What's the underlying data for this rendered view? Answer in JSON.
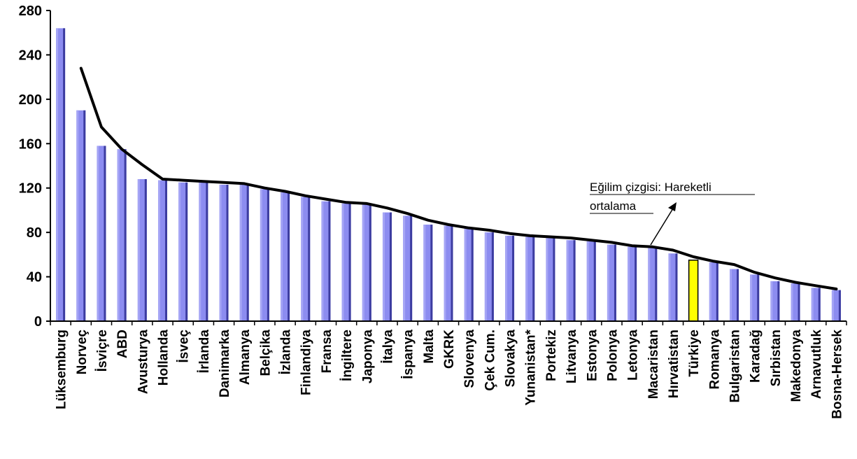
{
  "chart_data": {
    "type": "bar",
    "title": "",
    "xlabel": "",
    "ylabel": "",
    "ylim": [
      0,
      280
    ],
    "yticks": [
      0,
      40,
      80,
      120,
      160,
      200,
      240,
      280
    ],
    "grid": false,
    "legend": "none",
    "categories": [
      "Lüksemburg",
      "Norveç",
      "İsviçre",
      "ABD",
      "Avusturya",
      "Hollanda",
      "İsveç",
      "İrlanda",
      "Danimarka",
      "Almanya",
      "Belçika",
      "İzlanda",
      "Finlandiya",
      "Fransa",
      "İngiltere",
      "Japonya",
      "İtalya",
      "İspanya",
      "Malta",
      "GKRK",
      "Slovenya",
      "Çek Cum.",
      "Slovakya",
      "Yunanistan*",
      "Portekiz",
      "Litvanya",
      "Estonya",
      "Polonya",
      "Letonya",
      "Macaristan",
      "Hırvatistan",
      "Türkiye",
      "Romanya",
      "Bulgaristan",
      "Karadağ",
      "Sırbistan",
      "Makedonya",
      "Arnavutluk",
      "Bosna-Hersek"
    ],
    "series": [
      {
        "values": [
          264,
          190,
          158,
          155,
          128,
          127,
          125,
          125,
          123,
          123,
          119,
          116,
          112,
          108,
          106,
          105,
          98,
          95,
          87,
          86,
          84,
          80,
          77,
          76,
          75,
          73,
          72,
          69,
          67,
          66,
          61,
          55,
          53,
          47,
          42,
          36,
          34,
          30,
          28
        ]
      }
    ],
    "trend_line": {
      "values": [
        null,
        228,
        175,
        155,
        141,
        128,
        127,
        126,
        125,
        124,
        120,
        117,
        113,
        110,
        107,
        106,
        102,
        97,
        91,
        87,
        84,
        82,
        79,
        77,
        76,
        75,
        73,
        71,
        68,
        67,
        64,
        58,
        54,
        51,
        44,
        39,
        35,
        32,
        29
      ]
    },
    "highlight": {
      "index": 31,
      "color": "#ffff00"
    },
    "colors": {
      "bar": "#8c8cf0",
      "bar_light": "#a5a5f5",
      "bar_dark": "#3c3ca0",
      "trend": "#000000"
    },
    "annotation": {
      "line1": "Eğilim çizgisi: Hareketli",
      "line2": "ortalama"
    }
  }
}
